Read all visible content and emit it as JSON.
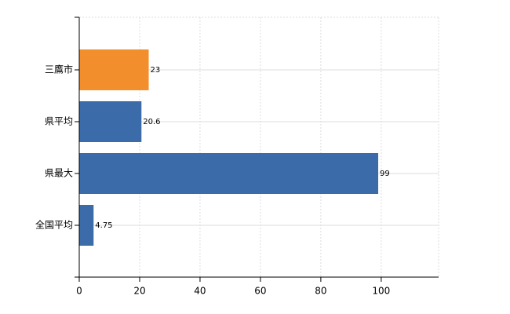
{
  "chart_data": {
    "type": "bar",
    "orientation": "horizontal",
    "categories": [
      "三鷹市",
      "県平均",
      "県最大",
      "全国平均"
    ],
    "values": [
      23,
      20.6,
      99,
      4.75
    ],
    "colors": [
      "#f28e2b",
      "#3b6ba8",
      "#3b6ba8",
      "#3b6ba8"
    ],
    "xlim": [
      0,
      119
    ],
    "xticks": [
      0,
      20,
      40,
      60,
      80,
      100
    ],
    "grid": true
  }
}
